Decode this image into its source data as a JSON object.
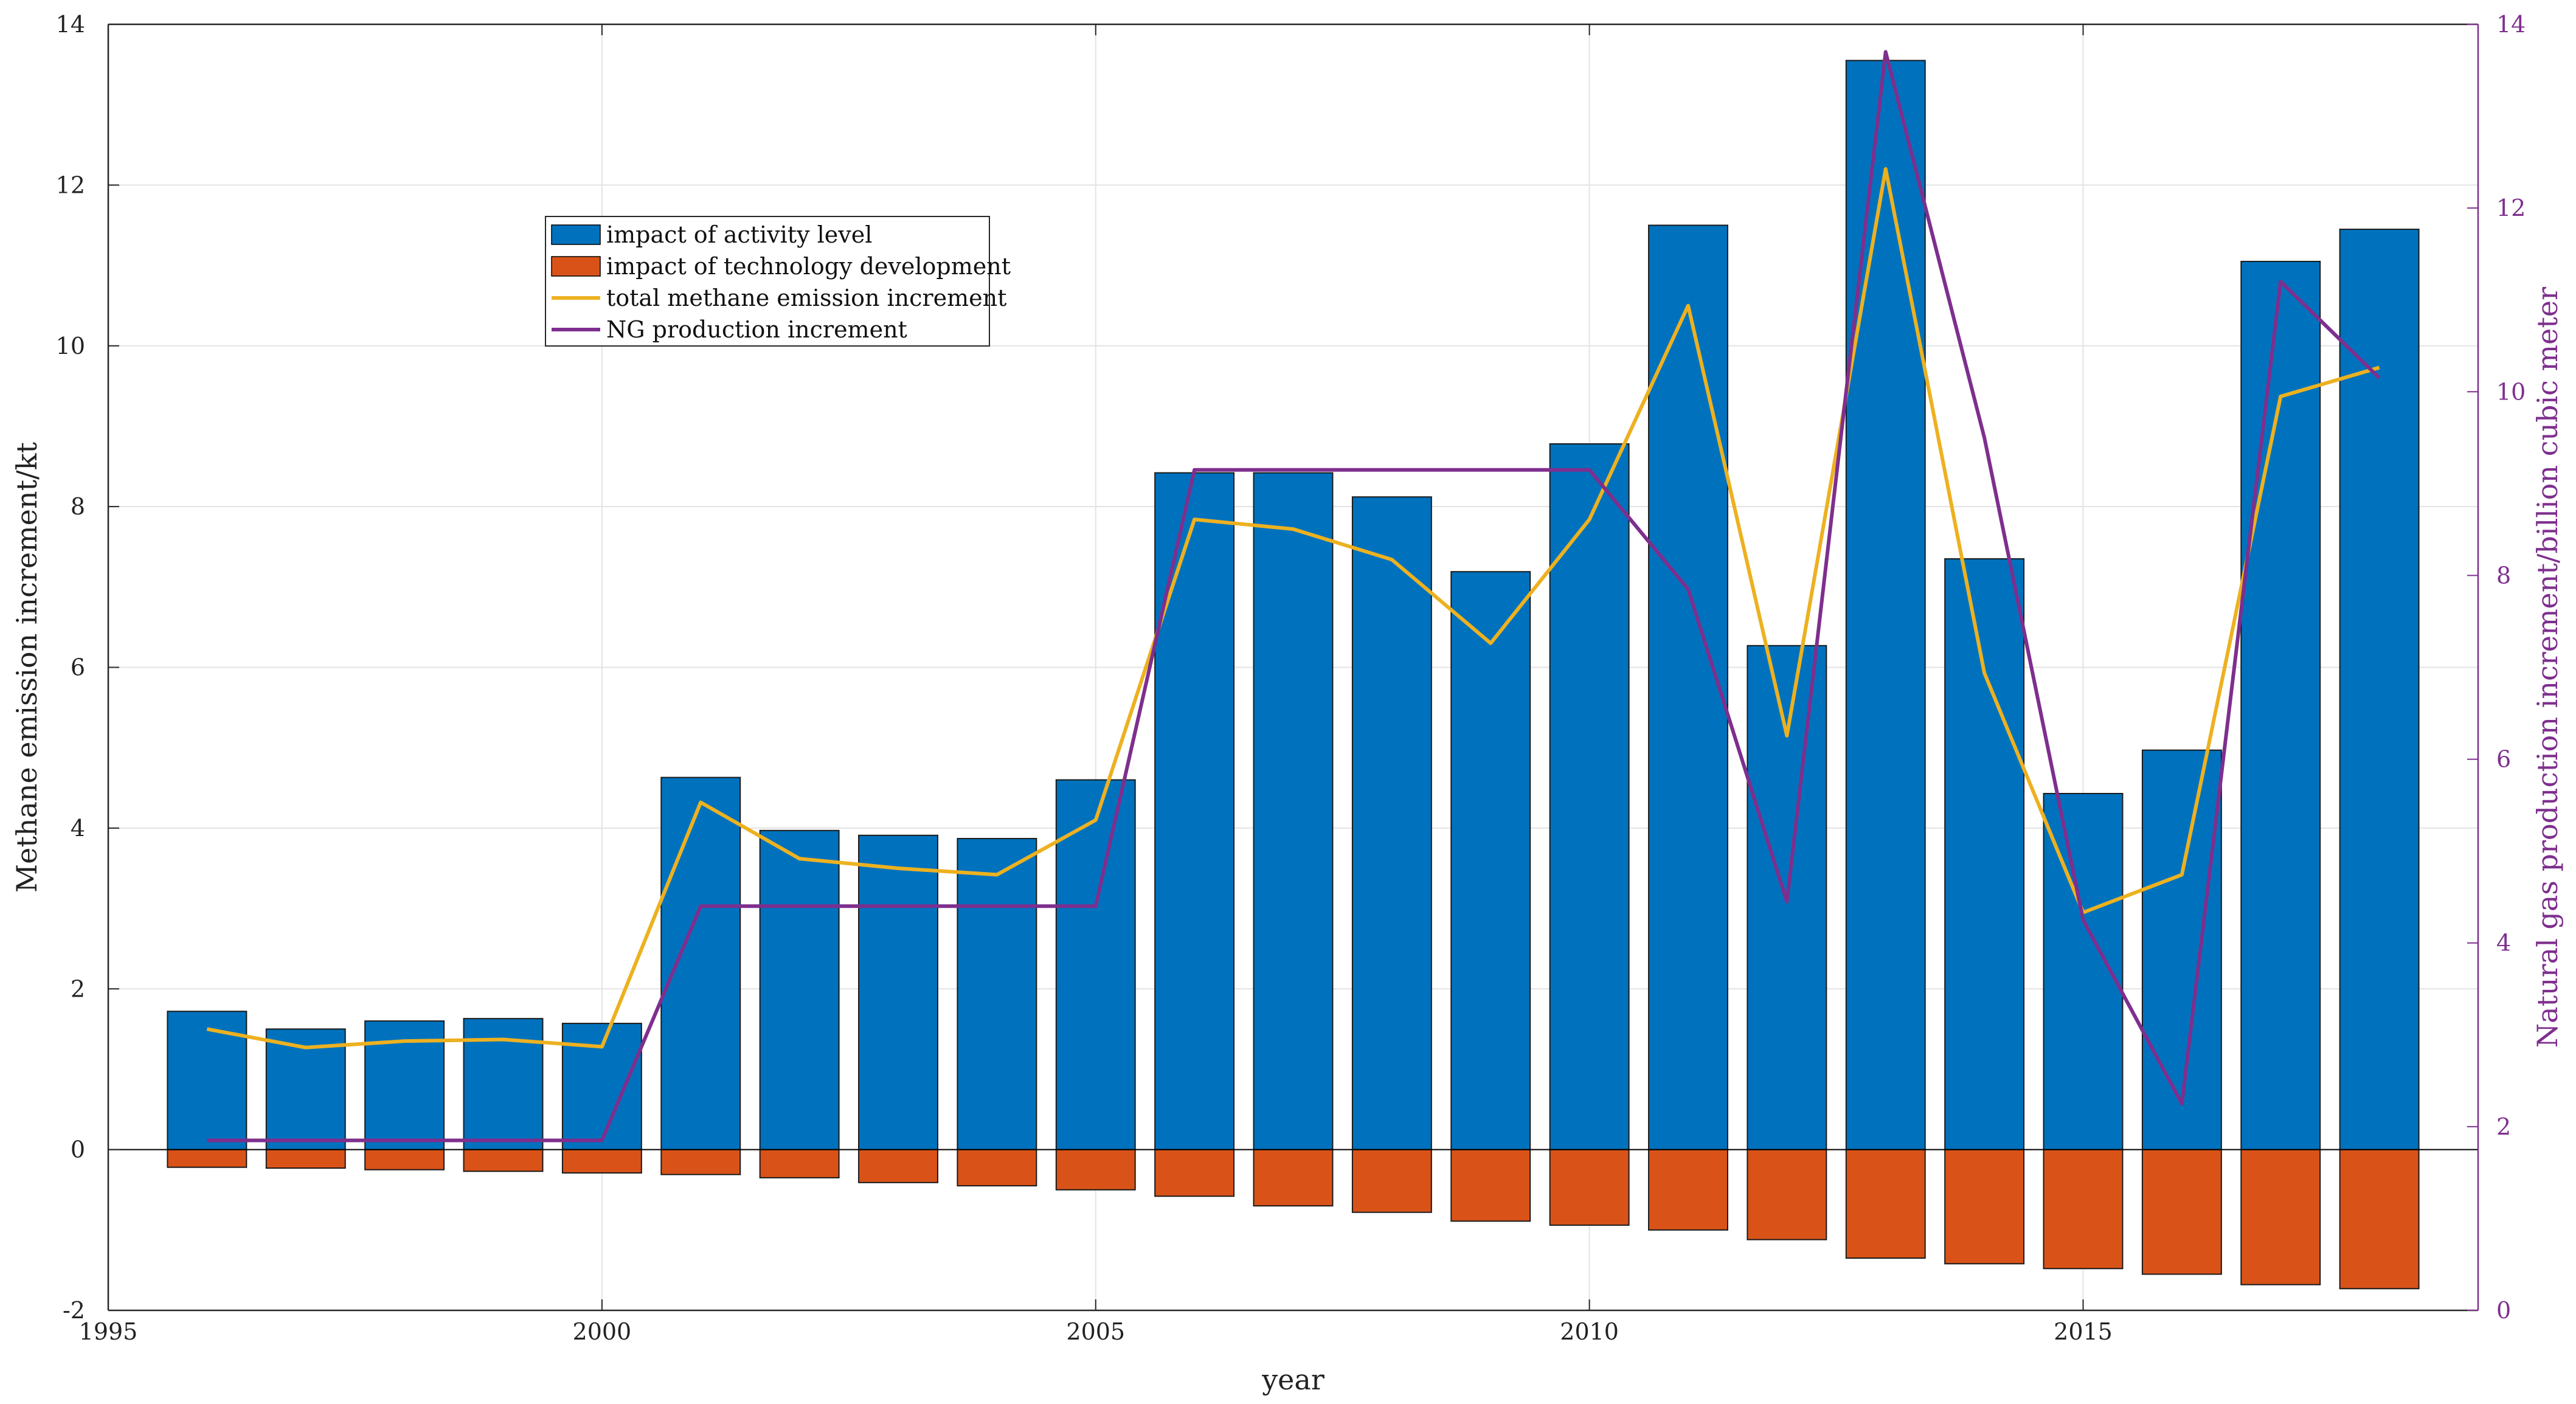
{
  "chart_data": {
    "type": "bar+line",
    "title": "",
    "xlabel": "year",
    "ylabel": "Methane emission increment/kt",
    "y2label": "Natural gas production increment/billion cubic meter",
    "xlim": [
      1995,
      2019
    ],
    "ylim": [
      -2,
      14
    ],
    "y2lim": [
      0,
      14
    ],
    "xticks": [
      1995,
      2000,
      2005,
      2010,
      2015
    ],
    "yticks": [
      -2,
      0,
      2,
      4,
      6,
      8,
      10,
      12,
      14
    ],
    "y2ticks": [
      0,
      2,
      4,
      6,
      8,
      10,
      12,
      14
    ],
    "grid": true,
    "legend_position": "upper-left-center",
    "x": [
      1996,
      1997,
      1998,
      1999,
      2000,
      2001,
      2002,
      2003,
      2004,
      2005,
      2006,
      2007,
      2008,
      2009,
      2010,
      2011,
      2012,
      2013,
      2014,
      2015,
      2016,
      2017,
      2018
    ],
    "series": [
      {
        "name": "impact of activity level",
        "type": "bar",
        "axis": "left",
        "color": "#0072BD",
        "values": [
          1.72,
          1.5,
          1.6,
          1.63,
          1.57,
          4.63,
          3.97,
          3.91,
          3.87,
          4.6,
          8.42,
          8.42,
          8.12,
          7.19,
          8.78,
          11.5,
          6.27,
          13.55,
          7.35,
          4.43,
          4.97,
          11.05,
          11.45
        ]
      },
      {
        "name": "impact of technology development",
        "type": "bar",
        "axis": "left",
        "color": "#D95319",
        "values": [
          -0.22,
          -0.23,
          -0.25,
          -0.27,
          -0.29,
          -0.31,
          -0.35,
          -0.41,
          -0.45,
          -0.5,
          -0.58,
          -0.7,
          -0.78,
          -0.89,
          -0.94,
          -1.0,
          -1.12,
          -1.35,
          -1.42,
          -1.48,
          -1.55,
          -1.68,
          -1.73
        ]
      },
      {
        "name": "total methane emission increment",
        "type": "line",
        "axis": "left",
        "color": "#EDB120",
        "values": [
          1.5,
          1.27,
          1.35,
          1.37,
          1.28,
          4.32,
          3.62,
          3.5,
          3.42,
          4.1,
          7.84,
          7.72,
          7.34,
          6.3,
          7.84,
          10.5,
          5.15,
          12.2,
          5.93,
          2.95,
          3.42,
          9.37,
          9.73
        ]
      },
      {
        "name": "NG production increment",
        "type": "line",
        "axis": "right",
        "color": "#7E2F8E",
        "values": [
          1.85,
          1.85,
          1.85,
          1.85,
          1.85,
          4.4,
          4.4,
          4.4,
          4.4,
          4.4,
          9.15,
          9.15,
          9.15,
          9.15,
          9.15,
          7.85,
          4.45,
          13.7,
          9.5,
          4.25,
          2.25,
          11.2,
          10.15
        ]
      }
    ]
  }
}
